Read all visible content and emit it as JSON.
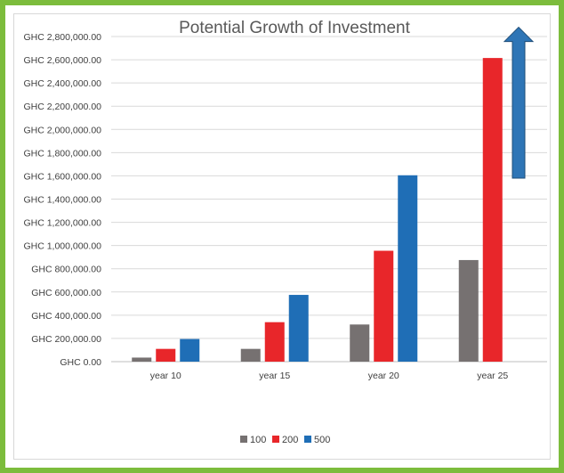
{
  "chart_data": {
    "type": "bar",
    "title": "Potential Growth of Investment",
    "xlabel": "",
    "ylabel": "",
    "categories": [
      "year 10",
      "year 15",
      "year 20",
      "year 25"
    ],
    "series": [
      {
        "name": "100",
        "color": "#767171",
        "values": [
          35000,
          110000,
          320000,
          875000
        ]
      },
      {
        "name": "200",
        "color": "#e8262a",
        "values": [
          110000,
          340000,
          955000,
          2615000
        ]
      },
      {
        "name": "500",
        "color": "#1f6eb6",
        "values": [
          195000,
          575000,
          1605000,
          0
        ]
      }
    ],
    "ylim": [
      0,
      2800000
    ],
    "yticks": [
      0,
      200000,
      400000,
      600000,
      800000,
      1000000,
      1200000,
      1400000,
      1600000,
      1800000,
      2000000,
      2200000,
      2400000,
      2600000,
      2800000
    ],
    "ytick_labels": [
      "GHC 0.00",
      "GHC 200,000.00",
      "GHC 400,000.00",
      "GHC 600,000.00",
      "GHC 800,000.00",
      "GHC 1,000,000.00",
      "GHC 1,200,000.00",
      "GHC 1,400,000.00",
      "GHC 1,600,000.00",
      "GHC 1,800,000.00",
      "GHC 2,000,000.00",
      "GHC 2,200,000.00",
      "GHC 2,400,000.00",
      "GHC 2,600,000.00",
      "GHC 2,800,000.00"
    ],
    "grid": true,
    "legend_position": "bottom",
    "annotation": {
      "type": "arrow-up",
      "color": "#2e75b6",
      "from_value": 1580000,
      "to_value": 2880000
    }
  }
}
